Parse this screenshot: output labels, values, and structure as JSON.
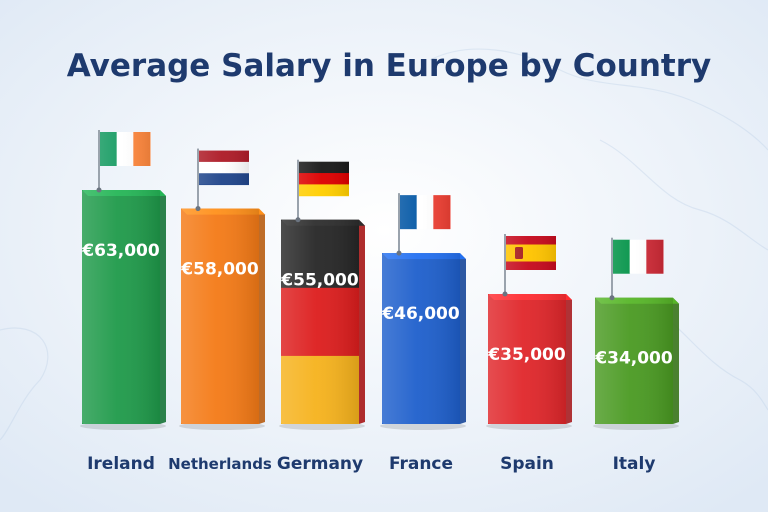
{
  "title": "Average Salary in Europe by Country",
  "chart_data": {
    "type": "bar",
    "title": "Average Salary in Europe by Country",
    "xlabel": "",
    "ylabel": "",
    "categories": [
      "Ireland",
      "Netherlands",
      "Germany",
      "France",
      "Spain",
      "Italy"
    ],
    "values": [
      63000,
      58000,
      55000,
      46000,
      35000,
      34000
    ],
    "value_labels": [
      "€63,000",
      "€58,000",
      "€55,000",
      "€46,000",
      "€35,000",
      "€34,000"
    ],
    "ylim": [
      0,
      63000
    ],
    "grid": false,
    "legend": "none",
    "bars": [
      {
        "country": "Ireland",
        "style": "solid",
        "color": "#1f9a4a",
        "flag": [
          "#169b62",
          "#ffffff",
          "#ff883e"
        ],
        "flag_orientation": "vertical"
      },
      {
        "country": "Netherlands",
        "style": "solid",
        "color": "#f47a16",
        "flag": [
          "#ae1c28",
          "#ffffff",
          "#21468b"
        ],
        "flag_orientation": "horizontal"
      },
      {
        "country": "Germany",
        "style": "tricolor",
        "color": "#262626",
        "tricolor": [
          "#262626",
          "#dd1d1d",
          "#f6b21c"
        ],
        "flag": [
          "#1a1a1a",
          "#dd0000",
          "#ffce00"
        ],
        "flag_orientation": "horizontal"
      },
      {
        "country": "France",
        "style": "solid",
        "color": "#1e5fcc",
        "flag": [
          "#0055a4",
          "#ffffff",
          "#ef4135"
        ],
        "flag_orientation": "vertical"
      },
      {
        "country": "Spain",
        "style": "solid",
        "color": "#e0262a",
        "flag": [
          "#c60b1e",
          "#ffc400",
          "#c60b1e"
        ],
        "flag_orientation": "spain"
      },
      {
        "country": "Italy",
        "style": "solid",
        "color": "#4a9a22",
        "flag": [
          "#009246",
          "#ffffff",
          "#ce2b37"
        ],
        "flag_orientation": "vertical"
      }
    ]
  }
}
